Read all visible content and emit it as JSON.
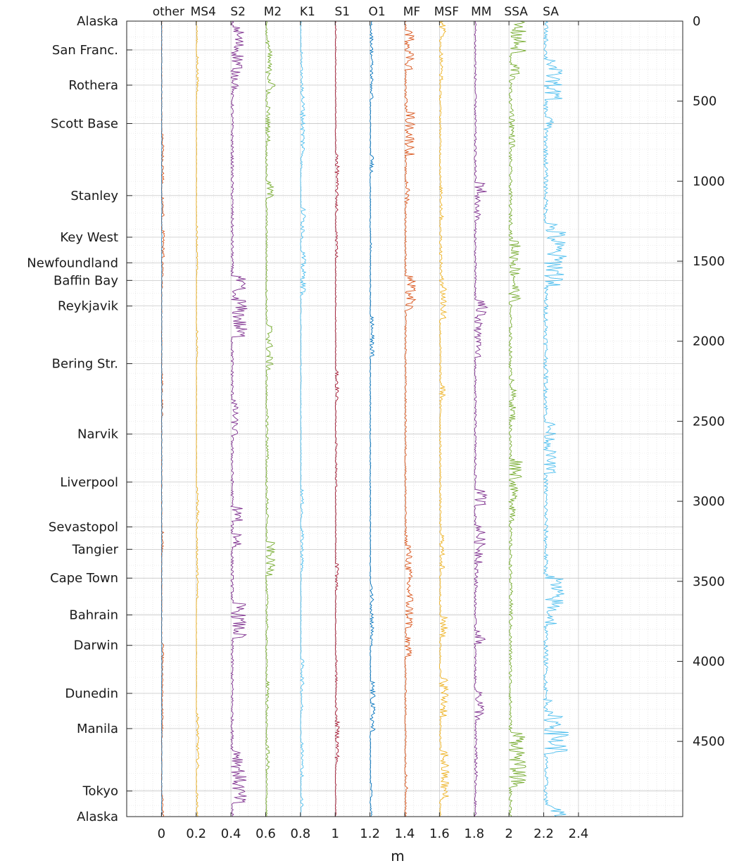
{
  "chart_data": {
    "type": "line",
    "xlabel": "m",
    "x_ticks": [
      "0",
      "0.2",
      "0.4",
      "0.6",
      "0.8",
      "1",
      "1.2",
      "1.4",
      "1.6",
      "1.8",
      "2",
      "2.2",
      "2.4"
    ],
    "x_tick_values": [
      0,
      0.2,
      0.4,
      0.6,
      0.8,
      1.0,
      1.2,
      1.4,
      1.6,
      1.8,
      2.0,
      2.2,
      2.4
    ],
    "xlim": [
      -0.2,
      3.0
    ],
    "ylim": [
      0,
      4970
    ],
    "y_reversed": true,
    "right_ticks": [
      "0",
      "500",
      "1000",
      "1500",
      "2000",
      "2500",
      "3000",
      "3500",
      "4000",
      "4500"
    ],
    "right_tick_values": [
      0,
      500,
      1000,
      1500,
      2000,
      2500,
      3000,
      3500,
      4000,
      4500
    ],
    "grid": true,
    "stations": [
      {
        "name": "Alaska",
        "y": 0
      },
      {
        "name": "San Franc.",
        "y": 180
      },
      {
        "name": "Rothera",
        "y": 400
      },
      {
        "name": "Scott Base",
        "y": 640
      },
      {
        "name": "Stanley",
        "y": 1090
      },
      {
        "name": "Key West",
        "y": 1350
      },
      {
        "name": "Newfoundland",
        "y": 1510
      },
      {
        "name": "Baffin Bay",
        "y": 1620
      },
      {
        "name": "Reykjavik",
        "y": 1780
      },
      {
        "name": "Bering Str.",
        "y": 2140
      },
      {
        "name": "Narvik",
        "y": 2580
      },
      {
        "name": "Liverpool",
        "y": 2880
      },
      {
        "name": "Sevastopol",
        "y": 3160
      },
      {
        "name": "Tangier",
        "y": 3300
      },
      {
        "name": "Cape Town",
        "y": 3480
      },
      {
        "name": "Bahrain",
        "y": 3710
      },
      {
        "name": "Darwin",
        "y": 3900
      },
      {
        "name": "Dunedin",
        "y": 4200
      },
      {
        "name": "Manila",
        "y": 4420
      },
      {
        "name": "Tokyo",
        "y": 4810
      },
      {
        "name": "Alaska",
        "y": 4970
      }
    ],
    "series": [
      {
        "name": "other",
        "offset": 0.0,
        "color": "#d95319",
        "color2": "#0072bd",
        "amp": 0.012
      },
      {
        "name": "MS4",
        "offset": 0.2,
        "color": "#edb120",
        "amp": 0.012
      },
      {
        "name": "S2",
        "offset": 0.4,
        "color": "#7e2f8e",
        "amp": 0.06
      },
      {
        "name": "M2",
        "offset": 0.6,
        "color": "#77ac30",
        "amp": 0.04
      },
      {
        "name": "K1",
        "offset": 0.8,
        "color": "#4dbeee",
        "amp": 0.02
      },
      {
        "name": "S1",
        "offset": 1.0,
        "color": "#a2142f",
        "amp": 0.02
      },
      {
        "name": "O1",
        "offset": 1.2,
        "color": "#0072bd",
        "amp": 0.02
      },
      {
        "name": "MF",
        "offset": 1.4,
        "color": "#d95319",
        "amp": 0.04
      },
      {
        "name": "MSF",
        "offset": 1.6,
        "color": "#edb120",
        "amp": 0.04
      },
      {
        "name": "MM",
        "offset": 1.8,
        "color": "#7e2f8e",
        "amp": 0.05
      },
      {
        "name": "SSA",
        "offset": 2.0,
        "color": "#77ac30",
        "amp": 0.07
      },
      {
        "name": "SA",
        "offset": 2.2,
        "color": "#4dbeee",
        "amp": 0.1
      }
    ]
  }
}
